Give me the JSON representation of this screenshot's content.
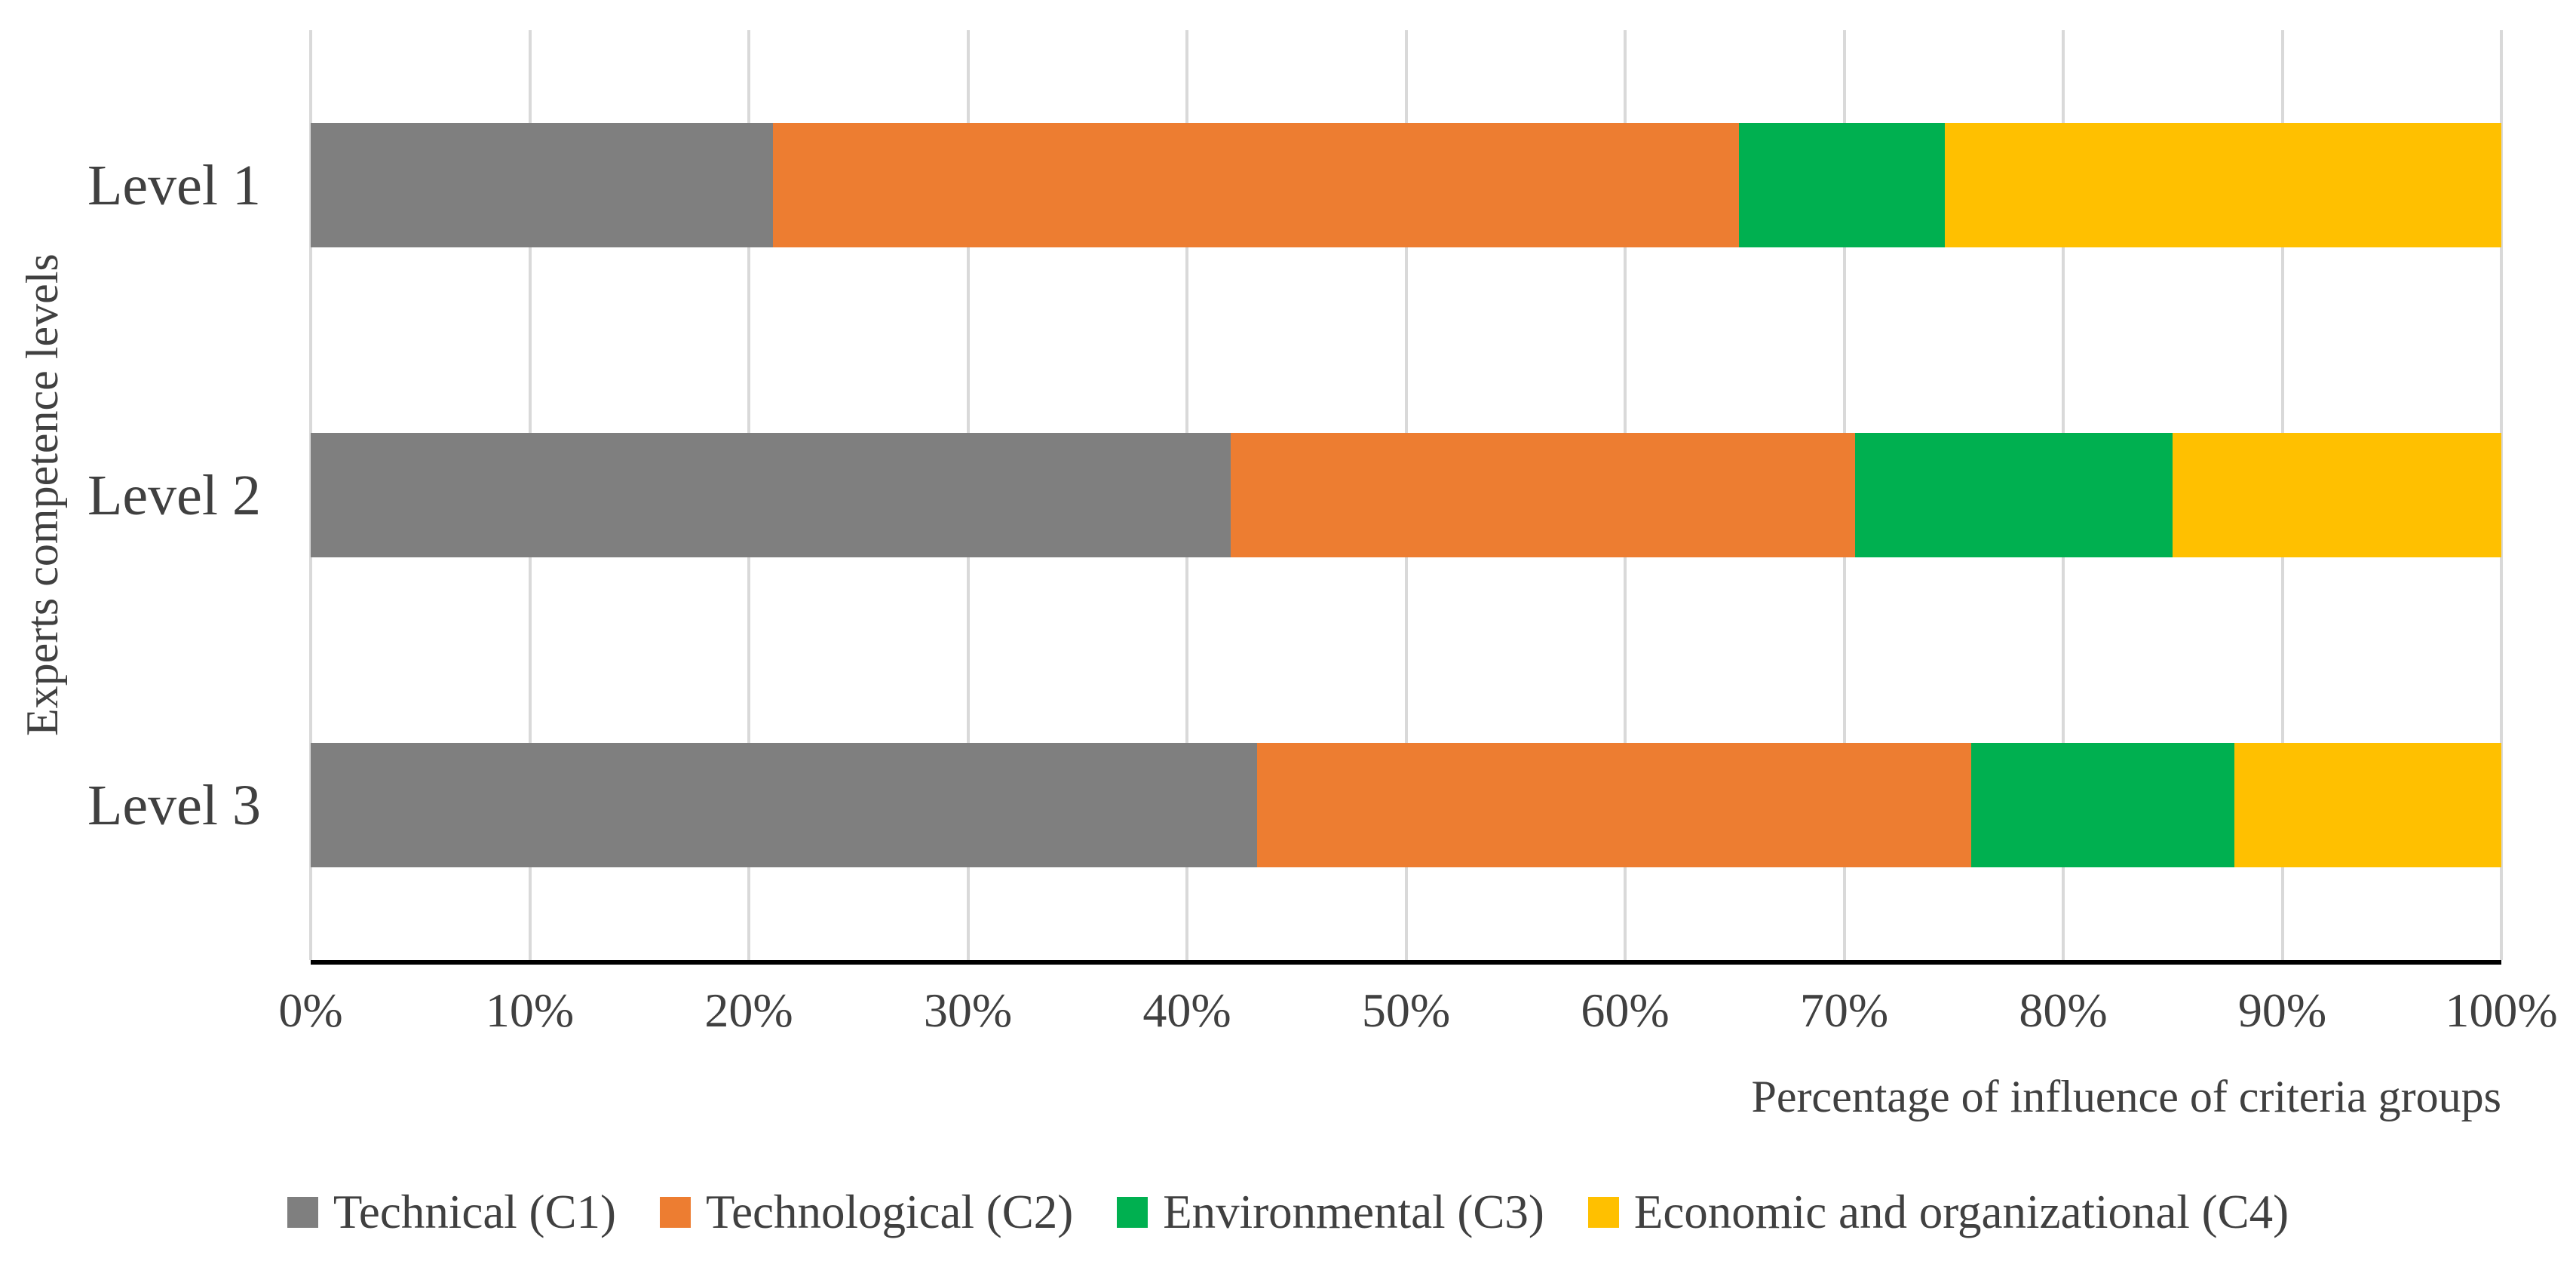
{
  "chart_data": {
    "type": "bar",
    "orientation": "horizontal",
    "stacked": true,
    "categories": [
      "Level 1",
      "Level 2",
      "Level 3"
    ],
    "series": [
      {
        "name": "Technical (C1)",
        "color": "#7F7F7F",
        "values": [
          21.1,
          42.0,
          43.2
        ]
      },
      {
        "name": "Technological (C2)",
        "color": "#ED7D31",
        "values": [
          44.1,
          28.5,
          32.6
        ]
      },
      {
        "name": "Environmental (C3)",
        "color": "#00B050",
        "values": [
          9.4,
          14.5,
          12.0
        ]
      },
      {
        "name": "Economic and organizational (C4)",
        "color": "#FFC000",
        "values": [
          25.4,
          15.0,
          12.2
        ]
      }
    ],
    "xlabel": "Percentage of influence of criteria groups",
    "ylabel": "Experts competence levels",
    "x_ticks": [
      "0%",
      "10%",
      "20%",
      "30%",
      "40%",
      "50%",
      "60%",
      "70%",
      "80%",
      "90%",
      "100%"
    ],
    "x_tick_values": [
      0,
      10,
      20,
      30,
      40,
      50,
      60,
      70,
      80,
      90,
      100
    ],
    "xlim": [
      0,
      100
    ],
    "grid": "vertical",
    "legend_position": "bottom"
  },
  "colors": {
    "gridline": "#D9D9D9",
    "axis_line": "#000000",
    "text": "#404040",
    "background": "#FFFFFF"
  }
}
